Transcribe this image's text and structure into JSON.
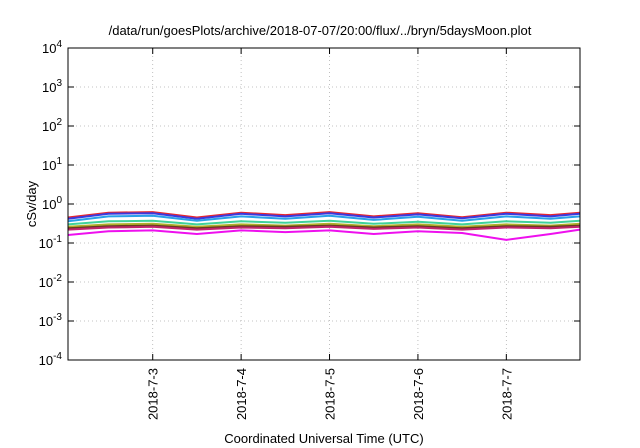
{
  "chart_data": {
    "type": "line",
    "title": "/data/run/goesPlots/archive/2018-07-07/20:00/flux/../bryn/5daysMoon.plot",
    "xlabel": "Coordinated Universal Time (UTC)",
    "ylabel": "cSv/day",
    "yscale": "log",
    "ylim": [
      0.0001,
      10000
    ],
    "xlim": [
      "2018-07-02 01:00",
      "2018-07-07 20:00"
    ],
    "grid": true,
    "x_ticks": [
      "2018-7-3",
      "2018-7-4",
      "2018-7-5",
      "2018-7-6",
      "2018-7-7"
    ],
    "y_ticks": [
      {
        "base": "10",
        "exp": "-4"
      },
      {
        "base": "10",
        "exp": "-3"
      },
      {
        "base": "10",
        "exp": "-2"
      },
      {
        "base": "10",
        "exp": "-1"
      },
      {
        "base": "10",
        "exp": "0"
      },
      {
        "base": "10",
        "exp": "1"
      },
      {
        "base": "10",
        "exp": "2"
      },
      {
        "base": "10",
        "exp": "3"
      },
      {
        "base": "10",
        "exp": "4"
      }
    ],
    "x": [
      "2018-07-02 01:00",
      "2018-07-02 12:00",
      "2018-07-03 00:00",
      "2018-07-03 12:00",
      "2018-07-04 00:00",
      "2018-07-04 12:00",
      "2018-07-05 00:00",
      "2018-07-05 12:00",
      "2018-07-06 00:00",
      "2018-07-06 12:00",
      "2018-07-07 00:00",
      "2018-07-07 12:00",
      "2018-07-07 20:00"
    ],
    "series": [
      {
        "color": "#e8262e",
        "values": [
          0.45,
          0.6,
          0.62,
          0.45,
          0.6,
          0.52,
          0.62,
          0.48,
          0.58,
          0.46,
          0.6,
          0.52,
          0.6
        ]
      },
      {
        "color": "#3a3adf",
        "values": [
          0.42,
          0.56,
          0.58,
          0.42,
          0.56,
          0.48,
          0.58,
          0.45,
          0.54,
          0.43,
          0.56,
          0.48,
          0.56
        ]
      },
      {
        "color": "#2aa0e8",
        "values": [
          0.36,
          0.48,
          0.5,
          0.37,
          0.48,
          0.42,
          0.5,
          0.39,
          0.47,
          0.37,
          0.48,
          0.42,
          0.48
        ]
      },
      {
        "color": "#3fd29a",
        "values": [
          0.3,
          0.36,
          0.37,
          0.3,
          0.36,
          0.33,
          0.37,
          0.31,
          0.35,
          0.3,
          0.36,
          0.33,
          0.37
        ]
      },
      {
        "color": "#b0b02a",
        "values": [
          0.26,
          0.3,
          0.31,
          0.26,
          0.3,
          0.28,
          0.31,
          0.27,
          0.3,
          0.26,
          0.3,
          0.28,
          0.31
        ]
      },
      {
        "color": "#6a3b1f",
        "values": [
          0.24,
          0.27,
          0.28,
          0.24,
          0.27,
          0.26,
          0.28,
          0.25,
          0.27,
          0.24,
          0.27,
          0.26,
          0.28
        ]
      },
      {
        "color": "#c0246c",
        "values": [
          0.22,
          0.25,
          0.26,
          0.22,
          0.25,
          0.24,
          0.26,
          0.23,
          0.25,
          0.22,
          0.25,
          0.24,
          0.26
        ]
      },
      {
        "color": "#ee10ee",
        "values": [
          0.16,
          0.2,
          0.21,
          0.17,
          0.21,
          0.19,
          0.21,
          0.17,
          0.2,
          0.18,
          0.12,
          0.17,
          0.22
        ]
      }
    ]
  }
}
